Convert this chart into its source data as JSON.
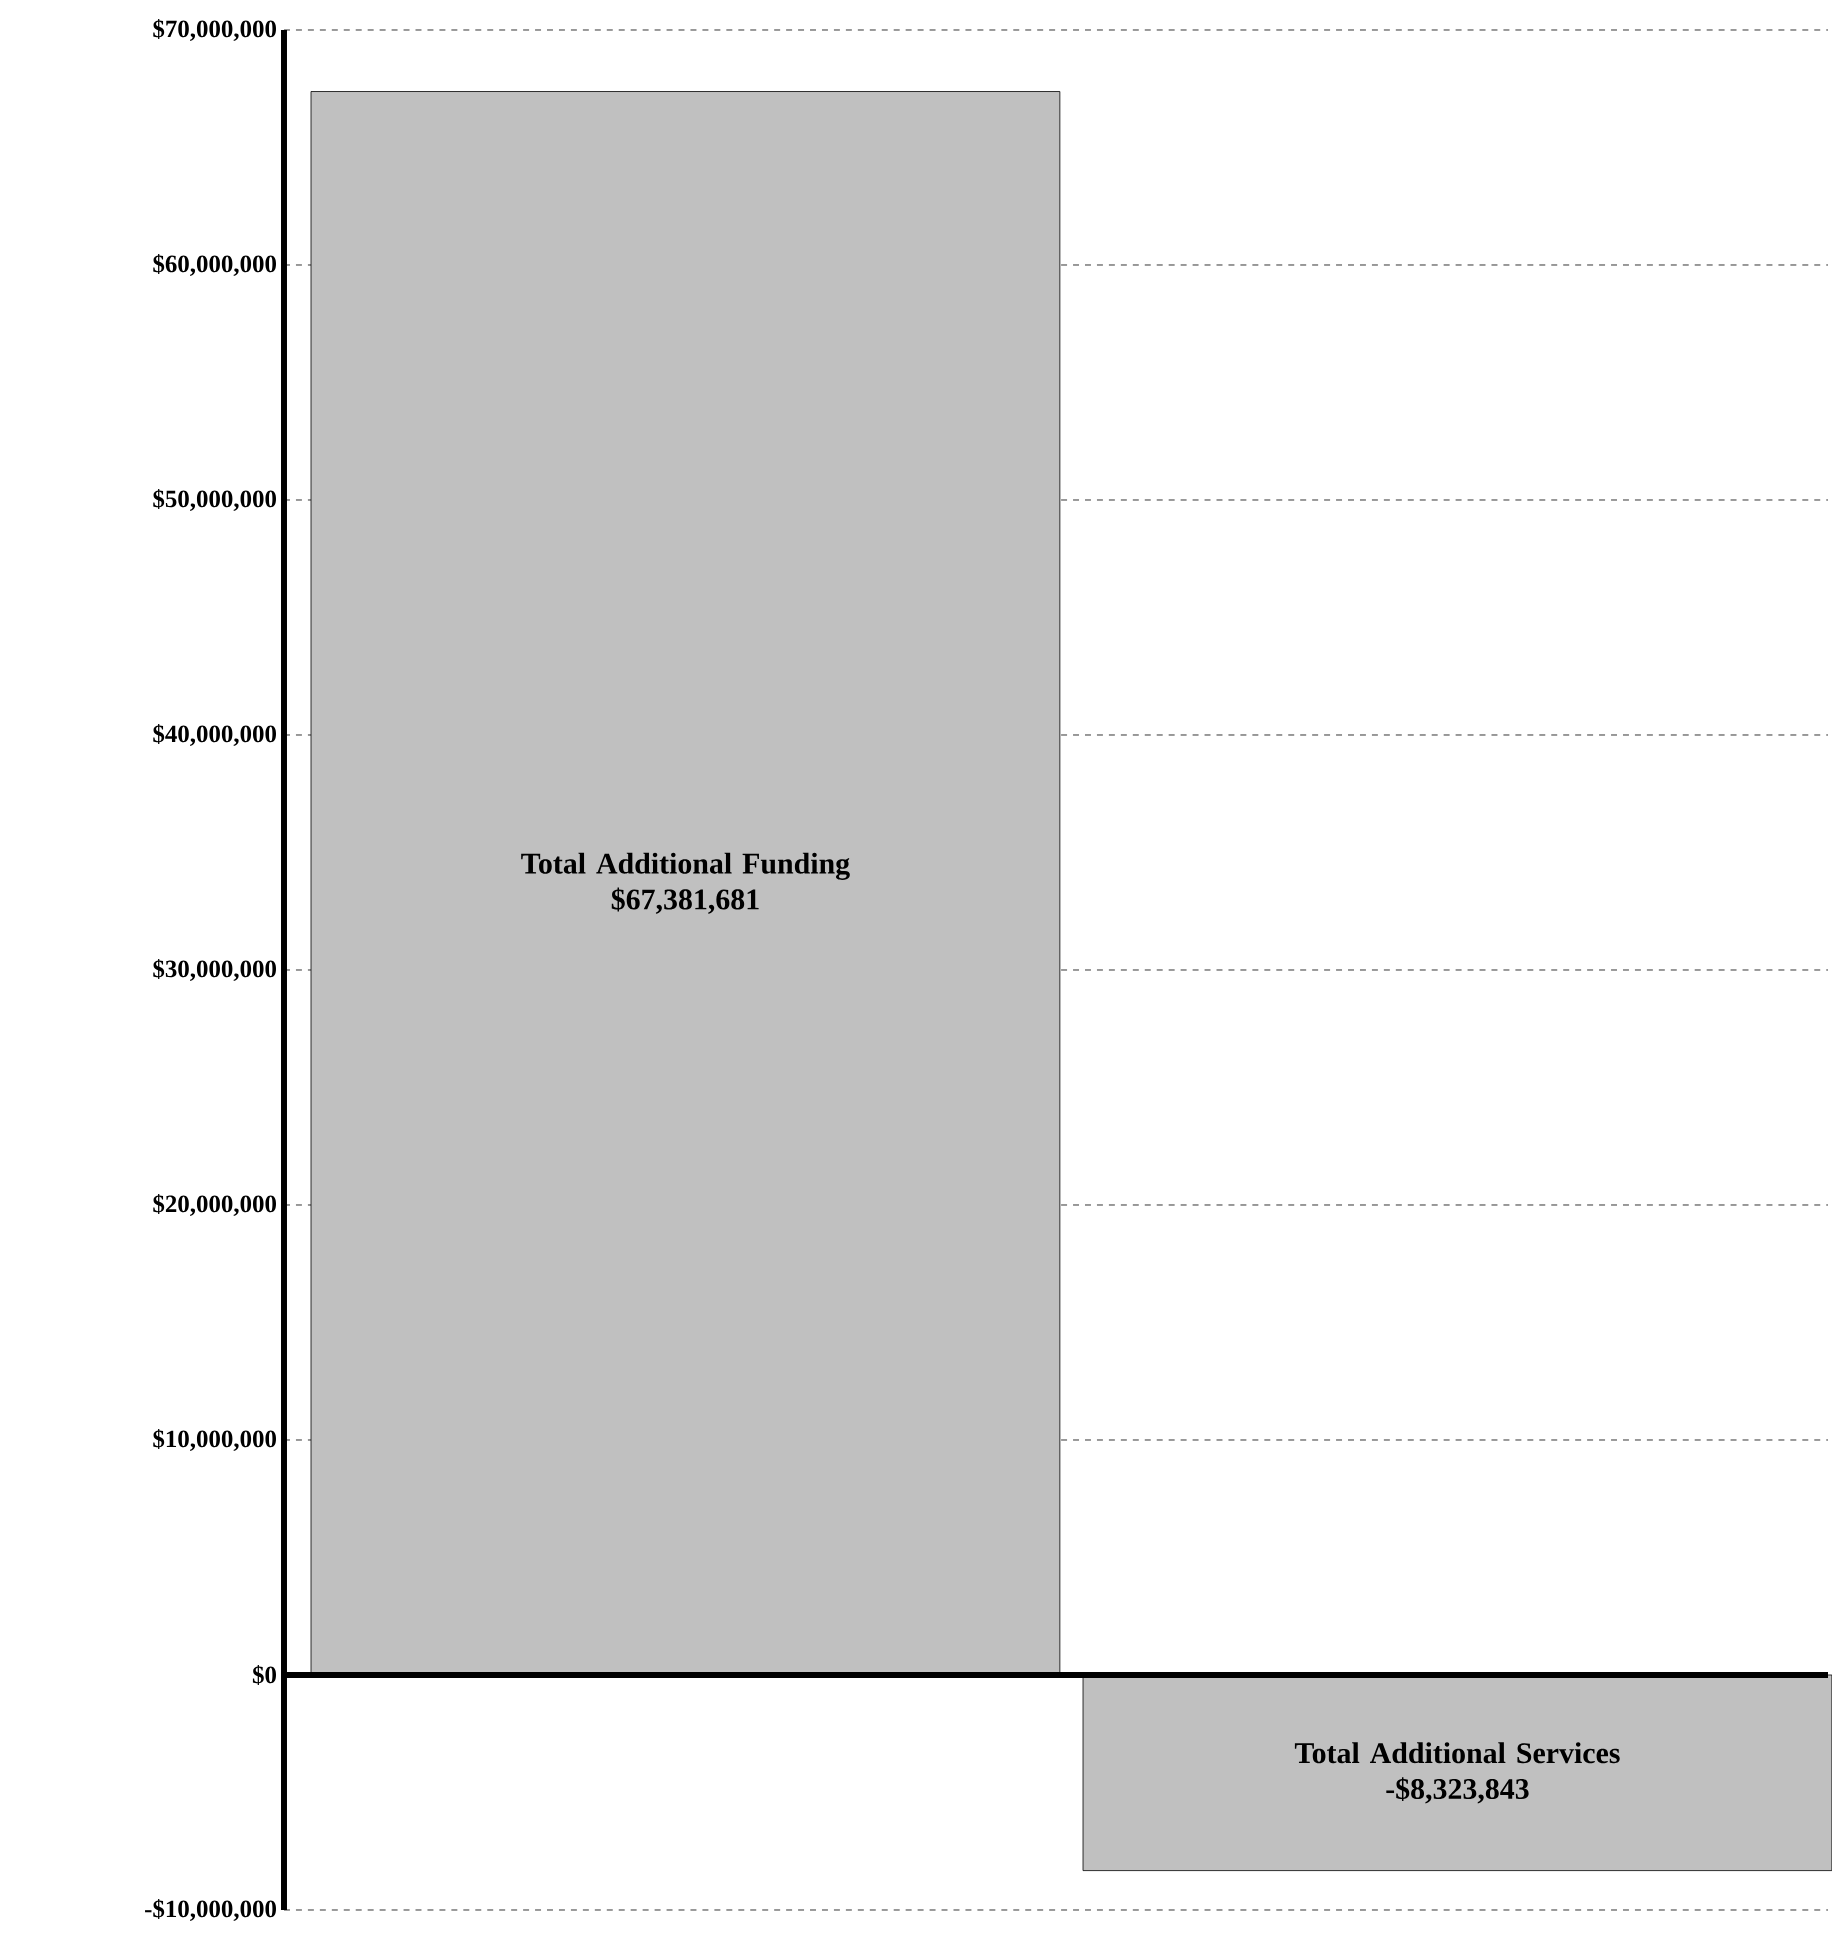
{
  "chart_data": {
    "type": "bar",
    "categories": [
      "Total Additional Funding",
      "Total Additional Services"
    ],
    "values": [
      67381681,
      -8323843
    ],
    "value_labels": [
      "$67,381,681",
      "-$8,323,843"
    ],
    "color": "#c0c0c0",
    "ylim": [
      -10000000,
      70000000
    ],
    "yticks": [
      {
        "value": -10000000,
        "label": "-$10,000,000"
      },
      {
        "value": 0,
        "label": "$0"
      },
      {
        "value": 10000000,
        "label": "$10,000,000"
      },
      {
        "value": 20000000,
        "label": "$20,000,000"
      },
      {
        "value": 30000000,
        "label": "$30,000,000"
      },
      {
        "value": 40000000,
        "label": "$40,000,000"
      },
      {
        "value": 50000000,
        "label": "$50,000,000"
      },
      {
        "value": 60000000,
        "label": "$60,000,000"
      },
      {
        "value": 70000000,
        "label": "$70,000,000"
      }
    ],
    "grid": "y"
  }
}
